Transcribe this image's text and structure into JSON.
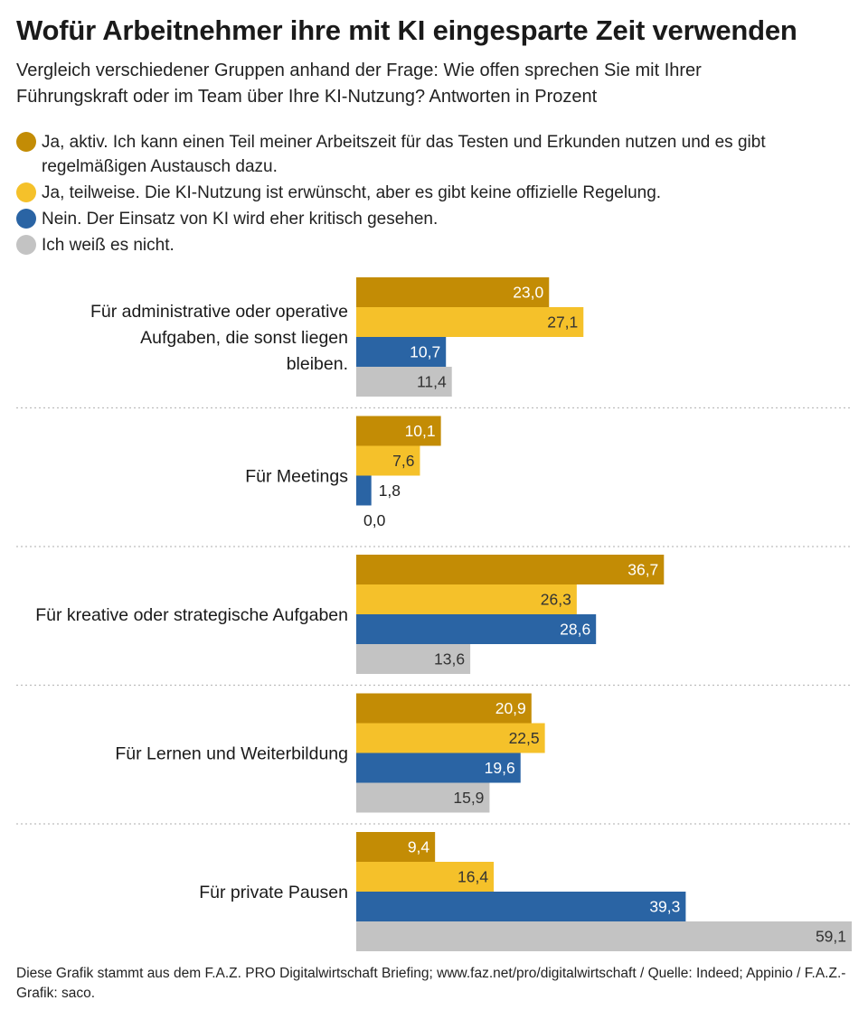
{
  "title": "Wofür Arbeitnehmer ihre mit KI eingesparte Zeit verwenden",
  "subtitle": "Vergleich verschiedener Gruppen anhand der Frage: Wie offen sprechen Sie mit Ihrer Führungskraft oder im Team über Ihre KI-Nutzung? Antworten in Prozent",
  "legend": [
    {
      "label": "Ja, aktiv. Ich kann einen Teil meiner Arbeitszeit für das Testen und Erkunden nutzen und es gibt regelmäßigen Austausch dazu.",
      "color": "#c38c05"
    },
    {
      "label": "Ja, teilweise. Die KI-Nutzung ist erwünscht, aber es gibt keine offizielle Regelung.",
      "color": "#f5c12a"
    },
    {
      "label": "Nein. Der Einsatz von KI wird eher kritisch gesehen.",
      "color": "#2a64a4"
    },
    {
      "label": "Ich weiß es nicht.",
      "color": "#c3c3c3"
    }
  ],
  "chart_data": {
    "type": "bar",
    "orientation": "horizontal",
    "categories": [
      "Für administrative oder operative Aufgaben, die sonst liegen bleiben.",
      "Für Meetings",
      "Für kreative oder strategische Aufgaben",
      "Für Lernen und Weiterbildung",
      "Für private Pausen"
    ],
    "series": [
      {
        "name": "Ja, aktiv. Ich kann einen Teil meiner Arbeitszeit für das Testen und Erkunden nutzen und es gibt regelmäßigen Austausch dazu.",
        "color": "#c38c05",
        "label_color": "#ffffff",
        "values": [
          23.0,
          10.1,
          36.7,
          20.9,
          9.4
        ],
        "labels": [
          "23,0",
          "10,1",
          "36,7",
          "20,9",
          "9,4"
        ]
      },
      {
        "name": "Ja, teilweise. Die KI-Nutzung ist erwünscht, aber es gibt keine offizielle Regelung.",
        "color": "#f5c12a",
        "label_color": "#333333",
        "values": [
          27.1,
          7.6,
          26.3,
          22.5,
          16.4
        ],
        "labels": [
          "27,1",
          "7,6",
          "26,3",
          "22,5",
          "16,4"
        ]
      },
      {
        "name": "Nein. Der Einsatz von KI wird eher kritisch gesehen.",
        "color": "#2a64a4",
        "label_color": "#ffffff",
        "values": [
          10.7,
          1.8,
          28.6,
          19.6,
          39.3
        ],
        "labels": [
          "10,7",
          "1,8",
          "28,6",
          "19,6",
          "39,3"
        ]
      },
      {
        "name": "Ich weiß es nicht.",
        "color": "#c3c3c3",
        "label_color": "#333333",
        "values": [
          11.4,
          0.0,
          13.6,
          15.9,
          59.1
        ],
        "labels": [
          "11,4",
          "0,0",
          "13,6",
          "15,9",
          "59,1"
        ]
      }
    ],
    "xlim": [
      0,
      59.1
    ],
    "grid": false,
    "separators": "dotted",
    "legend_position": "top"
  },
  "footer": "Diese Grafik stammt aus dem F.A.Z. PRO Digitalwirtschaft Briefing; www.faz.net/pro/digitalwirtschaft  / Quelle: Indeed; Appinio / F.A.Z.-Grafik: saco."
}
